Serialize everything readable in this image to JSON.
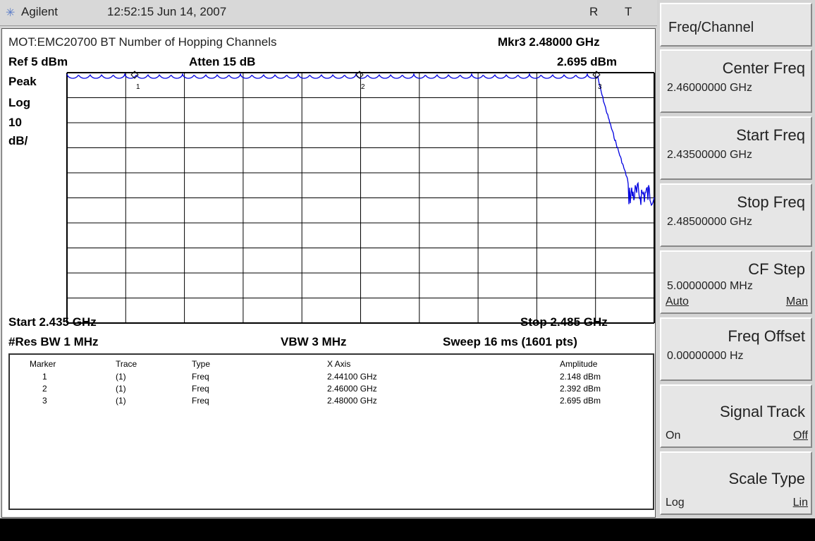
{
  "header": {
    "brand": "Agilent",
    "datetime": "12:52:15 Jun 14, 2007",
    "indicators": [
      "R",
      "T"
    ]
  },
  "display": {
    "title": "MOT:EMC20700 BT Number of Hopping Channels",
    "marker_readout": "Mkr3 2.48000 GHz",
    "ref_level": "Ref 5 dBm",
    "attenuation": "Atten 15 dB",
    "marker_amplitude": "2.695 dBm",
    "scale_labels": [
      "Peak",
      "Log",
      "10",
      "dB/"
    ],
    "marker_labels": [
      "1",
      "2",
      "3"
    ],
    "start": "Start 2.435 GHz",
    "stop": "Stop 2.485 GHz",
    "res_bw": "#Res BW 1 MHz",
    "vbw": "VBW 3 MHz",
    "sweep": "Sweep 16 ms (1601 pts)"
  },
  "marker_table": {
    "columns": [
      "Marker",
      "Trace",
      "Type",
      "X Axis",
      "Amplitude"
    ],
    "rows": [
      [
        "1",
        "(1)",
        "Freq",
        "2.44100 GHz",
        "2.148 dBm"
      ],
      [
        "2",
        "(1)",
        "Freq",
        "2.46000 GHz",
        "2.392 dBm"
      ],
      [
        "3",
        "(1)",
        "Freq",
        "2.48000 GHz",
        "2.695 dBm"
      ]
    ]
  },
  "softkeys": {
    "menu_title": "Freq/Channel",
    "keys": [
      {
        "label": "Center Freq",
        "value": "2.46000000 GHz"
      },
      {
        "label": "Start Freq",
        "value": "2.43500000 GHz"
      },
      {
        "label": "Stop Freq",
        "value": "2.48500000 GHz"
      },
      {
        "label": "CF Step",
        "value": "5.00000000 MHz",
        "options": [
          "Auto",
          "Man"
        ]
      },
      {
        "label": "Freq Offset",
        "value": "0.00000000  Hz"
      },
      {
        "label": "Signal Track",
        "options": [
          "On",
          "Off"
        ]
      },
      {
        "label": "Scale Type",
        "options": [
          "Log",
          "Lin"
        ]
      }
    ]
  }
}
